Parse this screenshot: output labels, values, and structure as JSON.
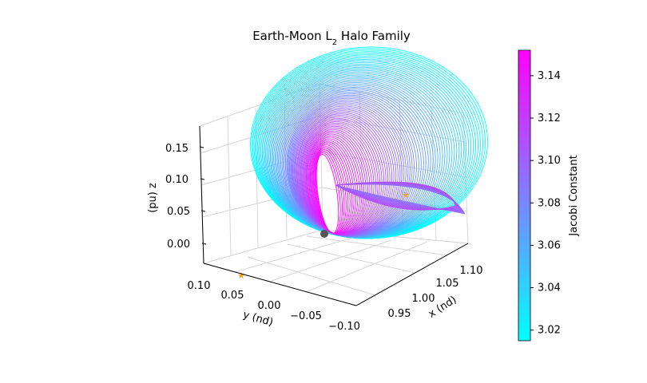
{
  "chart_data": {
    "type": "line",
    "title": "Earth-Moon L",
    "title_sub": "2",
    "title_rest": " Halo Family",
    "xlabel": "x (nd)",
    "ylabel": "y (nd)",
    "zlabel": "(pu) z",
    "x_ticks": [
      "0.95",
      "1.00",
      "1.05",
      "1.10"
    ],
    "y_ticks": [
      "0.10",
      "0.05",
      "0.00",
      "−0.05",
      "−0.10"
    ],
    "z_ticks": [
      "0.15",
      "0.10",
      "0.05",
      "0.00"
    ],
    "xlim": [
      0.92,
      1.13
    ],
    "ylim": [
      -0.1,
      0.1
    ],
    "zlim": [
      -0.02,
      0.18
    ],
    "colorbar": {
      "label": "Jacobi Constant",
      "ticks": [
        "3.14",
        "3.12",
        "3.10",
        "3.08",
        "3.06",
        "3.04",
        "3.02"
      ],
      "range": [
        3.015,
        3.152
      ],
      "colormap": [
        "#00ffff",
        "#ff00ff"
      ]
    },
    "moon_marker": {
      "x": 0.987,
      "y": 0.0,
      "z": 0.0,
      "color": "#555555"
    },
    "l2_marker_color": "#f0a020",
    "series_note_jacobi_min": 3.015,
    "series_note_jacobi_max": 3.152
  }
}
